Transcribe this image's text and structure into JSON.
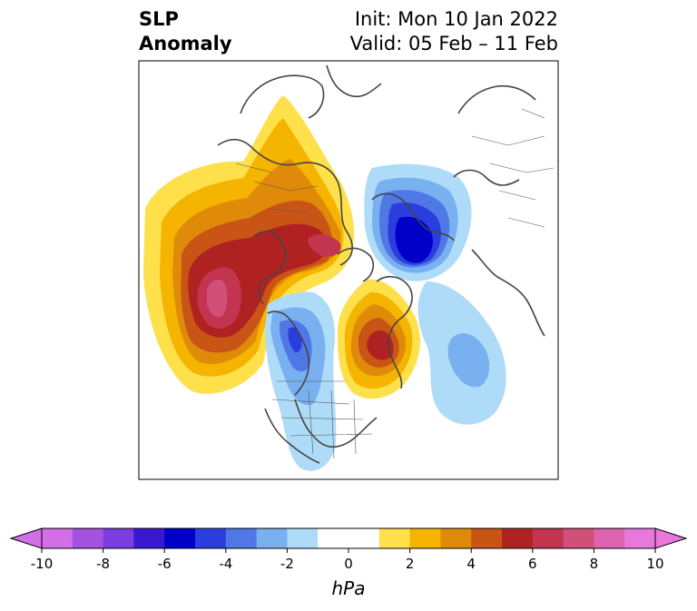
{
  "title": {
    "variable": "SLP",
    "type": "Anomaly",
    "init": "Init: Mon 10 Jan 2022",
    "valid": "Valid: 05 Feb – 11 Feb"
  },
  "colorbar": {
    "unit": "hPa",
    "ticks": [
      "-10",
      "-8",
      "-6",
      "-4",
      "-2",
      "0",
      "2",
      "4",
      "6",
      "8",
      "10"
    ],
    "colors": [
      "#d26ee6",
      "#a452e0",
      "#7a3ee0",
      "#3a18d0",
      "#0000c8",
      "#2a3ede",
      "#4f78e6",
      "#78b0f0",
      "#aedcf8",
      "#ffffff",
      "#ffffff",
      "#fde04a",
      "#f4b400",
      "#e08a0a",
      "#c85516",
      "#b02222",
      "#c23450",
      "#d0507a",
      "#dc64b0",
      "#e878dc"
    ]
  }
}
